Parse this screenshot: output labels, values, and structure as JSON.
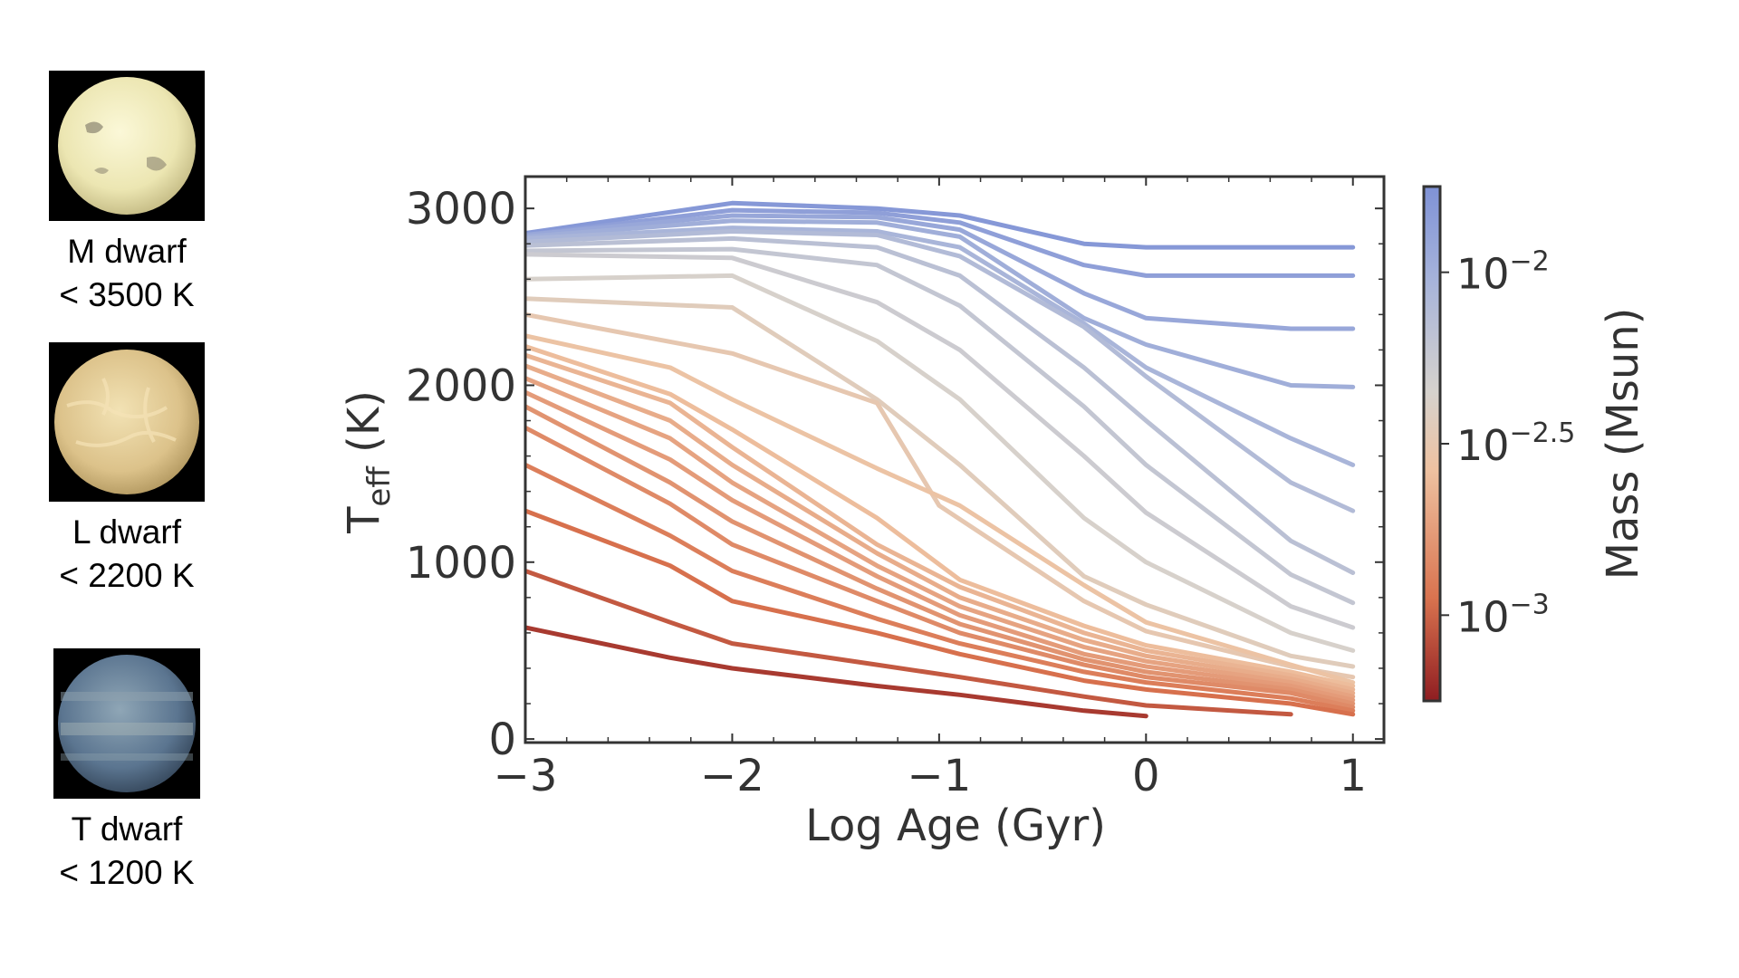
{
  "panels": [
    {
      "name": "M dwarf",
      "temp": "< 3500 K",
      "icon": "m-dwarf-planet-image",
      "base": "#f3efbf",
      "spot": "#8a8470"
    },
    {
      "name": "L dwarf",
      "temp": "< 2200 K",
      "icon": "l-dwarf-planet-image",
      "base": "#e3cd98",
      "spot": "#f5e3b6"
    },
    {
      "name": "T dwarf",
      "temp": "< 1200 K",
      "icon": "t-dwarf-planet-image",
      "base": "#5b7590",
      "spot": "#8fa2ad"
    }
  ],
  "chart_data": {
    "type": "line",
    "xlabel": "Log Age (Gyr)",
    "ylabel_main": "T",
    "ylabel_sub": "eff",
    "ylabel_unit": " (K)",
    "xlim": [
      -3,
      1.15
    ],
    "ylim": [
      -20,
      3180
    ],
    "xticks": [
      -3,
      -2,
      -1,
      0,
      1
    ],
    "xtick_labels": [
      "−3",
      "−2",
      "−1",
      "0",
      "1"
    ],
    "yticks": [
      0,
      1000,
      2000,
      3000
    ],
    "ytick_labels": [
      "0",
      "1000",
      "2000",
      "3000"
    ],
    "colorbar": {
      "label": "Mass (Msun)",
      "ticks": [
        {
          "base": "10",
          "exp": "−2",
          "logm": -2.0
        },
        {
          "base": "10",
          "exp": "−2.5",
          "logm": -2.5
        },
        {
          "base": "10",
          "exp": "−3",
          "logm": -3.0
        }
      ],
      "logm_range": [
        -3.25,
        -1.75
      ],
      "colors": [
        "#8f1d21",
        "#d9734f",
        "#eec2a1",
        "#d6d2cd",
        "#a6b3da",
        "#7f92d6"
      ]
    },
    "series": [
      {
        "logm": -1.8,
        "x": [
          -3,
          -2,
          -1.3,
          -0.9,
          -0.3,
          0,
          0.7,
          1
        ],
        "y": [
          2860,
          3030,
          3000,
          2960,
          2800,
          2780,
          2780,
          2780
        ]
      },
      {
        "logm": -1.86,
        "x": [
          -3,
          -2,
          -1.3,
          -0.9,
          -0.3,
          0,
          0.7,
          1
        ],
        "y": [
          2850,
          2990,
          2975,
          2920,
          2680,
          2620,
          2620,
          2620
        ]
      },
      {
        "logm": -1.92,
        "x": [
          -3,
          -2,
          -1.3,
          -0.9,
          -0.3,
          0,
          0.7,
          1
        ],
        "y": [
          2850,
          2960,
          2950,
          2880,
          2520,
          2380,
          2320,
          2320
        ]
      },
      {
        "logm": -1.98,
        "x": [
          -3,
          -2,
          -1.3,
          -0.9,
          -0.3,
          0,
          0.7,
          1
        ],
        "y": [
          2840,
          2930,
          2920,
          2840,
          2380,
          2230,
          2000,
          1990
        ]
      },
      {
        "logm": -2.04,
        "x": [
          -3,
          -2,
          -1.3,
          -0.9,
          -0.3,
          0,
          0.7,
          1
        ],
        "y": [
          2830,
          2890,
          2870,
          2780,
          2350,
          2100,
          1700,
          1550
        ]
      },
      {
        "logm": -2.1,
        "x": [
          -3,
          -2,
          -1.3,
          -0.9,
          -0.3,
          0,
          0.7,
          1
        ],
        "y": [
          2810,
          2870,
          2850,
          2730,
          2330,
          2050,
          1450,
          1290
        ]
      },
      {
        "logm": -2.16,
        "x": [
          -3,
          -2,
          -1.3,
          -0.9,
          -0.3,
          0,
          0.7,
          1
        ],
        "y": [
          2790,
          2830,
          2780,
          2620,
          2100,
          1800,
          1120,
          940
        ]
      },
      {
        "logm": -2.22,
        "x": [
          -3,
          -2,
          -1.3,
          -0.9,
          -0.3,
          0,
          0.7,
          1
        ],
        "y": [
          2760,
          2770,
          2680,
          2450,
          1880,
          1550,
          930,
          770
        ]
      },
      {
        "logm": -2.28,
        "x": [
          -3,
          -2,
          -1.3,
          -0.9,
          -0.3,
          0,
          0.7,
          1
        ],
        "y": [
          2740,
          2720,
          2470,
          2200,
          1600,
          1280,
          750,
          630
        ]
      },
      {
        "logm": -2.36,
        "x": [
          -3,
          -2,
          -1.3,
          -0.9,
          -0.3,
          0,
          0.7,
          1
        ],
        "y": [
          2600,
          2620,
          2250,
          1920,
          1250,
          1000,
          600,
          500
        ]
      },
      {
        "logm": -2.44,
        "x": [
          -3,
          -2,
          -1.3,
          -0.9,
          -0.3,
          0,
          0.7,
          1
        ],
        "y": [
          2490,
          2440,
          1920,
          1550,
          920,
          760,
          470,
          410
        ]
      },
      {
        "logm": -2.5,
        "x": [
          -3,
          -2,
          -1.3,
          -1.0,
          -0.3,
          0,
          0.7,
          1
        ],
        "y": [
          2400,
          2180,
          1900,
          1320,
          780,
          610,
          410,
          350
        ]
      },
      {
        "logm": -2.56,
        "x": [
          -3,
          -2.3,
          -2,
          -1.3,
          -0.9,
          -0.3,
          0,
          0.7,
          1
        ],
        "y": [
          2280,
          2100,
          1920,
          1530,
          1320,
          870,
          660,
          420,
          320
        ]
      },
      {
        "logm": -2.6,
        "x": [
          -3,
          -2.3,
          -2,
          -1.3,
          -0.9,
          -0.3,
          0,
          0.7,
          1
        ],
        "y": [
          2220,
          1950,
          1750,
          1250,
          900,
          640,
          530,
          380,
          300
        ]
      },
      {
        "logm": -2.64,
        "x": [
          -3,
          -2.3,
          -2,
          -1.3,
          -0.9,
          -0.3,
          0,
          0.7,
          1
        ],
        "y": [
          2170,
          1900,
          1650,
          1100,
          860,
          600,
          500,
          360,
          280
        ]
      },
      {
        "logm": -2.68,
        "x": [
          -3,
          -2.3,
          -2,
          -1.3,
          -0.9,
          -0.3,
          0,
          0.7,
          1
        ],
        "y": [
          2110,
          1800,
          1550,
          1050,
          800,
          560,
          470,
          340,
          260
        ]
      },
      {
        "logm": -2.72,
        "x": [
          -3,
          -2.3,
          -2,
          -1.3,
          -0.9,
          -0.3,
          0,
          0.7,
          1
        ],
        "y": [
          2040,
          1700,
          1450,
          980,
          750,
          520,
          440,
          320,
          240
        ]
      },
      {
        "logm": -2.76,
        "x": [
          -3,
          -2.3,
          -2,
          -1.3,
          -0.9,
          -0.3,
          0,
          0.7,
          1
        ],
        "y": [
          1960,
          1580,
          1350,
          920,
          700,
          480,
          410,
          300,
          220
        ]
      },
      {
        "logm": -2.8,
        "x": [
          -3,
          -2.3,
          -2,
          -1.3,
          -0.9,
          -0.3,
          0,
          0.7,
          1
        ],
        "y": [
          1880,
          1450,
          1230,
          850,
          650,
          450,
          380,
          280,
          200
        ]
      },
      {
        "logm": -2.84,
        "x": [
          -3,
          -2.3,
          -2,
          -1.3,
          -0.9,
          -0.3,
          0,
          0.7,
          1
        ],
        "y": [
          1760,
          1330,
          1100,
          780,
          600,
          420,
          350,
          260,
          180
        ]
      },
      {
        "logm": -2.9,
        "x": [
          -3,
          -2.3,
          -2,
          -1.3,
          -0.9,
          -0.3,
          0,
          0.7,
          1
        ],
        "y": [
          1550,
          1150,
          950,
          680,
          540,
          380,
          320,
          230,
          160
        ]
      },
      {
        "logm": -2.96,
        "x": [
          -3,
          -2.3,
          -2,
          -1.3,
          -0.9,
          -0.3,
          0,
          0.7,
          1
        ],
        "y": [
          1290,
          980,
          780,
          600,
          480,
          330,
          280,
          200,
          140
        ]
      },
      {
        "logm": -3.04,
        "x": [
          -3,
          -2.3,
          -2,
          -1.3,
          -0.9,
          -0.3,
          0,
          0.7
        ],
        "y": [
          950,
          660,
          540,
          420,
          350,
          240,
          190,
          140
        ]
      },
      {
        "logm": -3.15,
        "x": [
          -3,
          -2.3,
          -2,
          -1.3,
          -0.9,
          -0.3,
          0
        ],
        "y": [
          630,
          460,
          400,
          300,
          250,
          160,
          130
        ]
      }
    ]
  }
}
